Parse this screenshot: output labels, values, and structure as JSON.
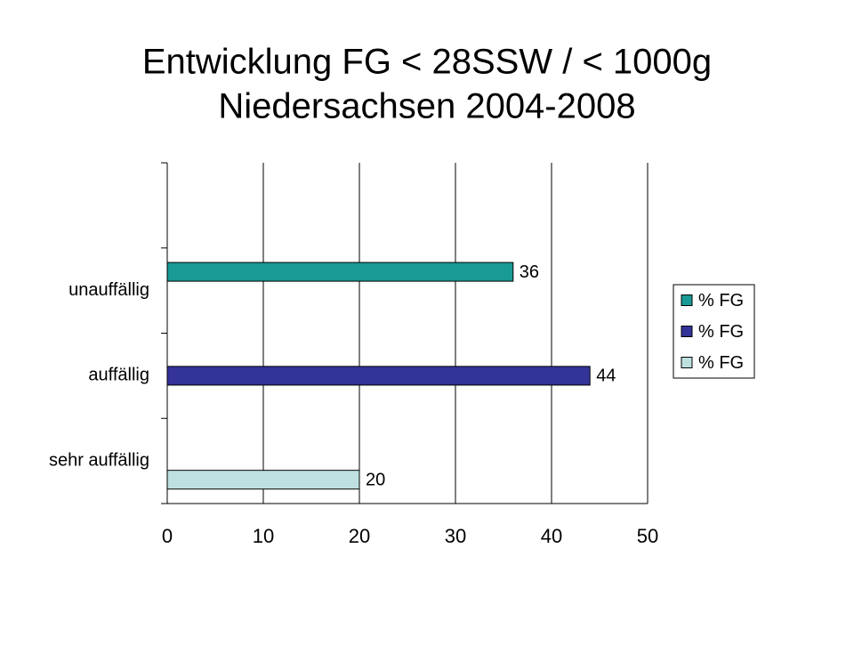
{
  "chart_data": {
    "type": "bar",
    "orientation": "horizontal",
    "title": "Entwicklung FG < 28SSW / < 1000g",
    "subtitle": "Niedersachsen 2004-2008",
    "categories": [
      null,
      "unauffällig",
      "auffällig",
      "sehr auffällig"
    ],
    "series": [
      {
        "name": "% FG",
        "color": "#1a9a94",
        "values": [
          null,
          36,
          null,
          null
        ]
      },
      {
        "name": "% FG",
        "color": "#33339a",
        "values": [
          null,
          null,
          44,
          null
        ]
      },
      {
        "name": "% FG",
        "color": "#bfe0e0",
        "values": [
          null,
          null,
          null,
          20
        ]
      }
    ],
    "xlim": [
      0,
      50
    ],
    "xticks": [
      0,
      10,
      20,
      30,
      40,
      50
    ],
    "grid": true,
    "legend": "right"
  }
}
